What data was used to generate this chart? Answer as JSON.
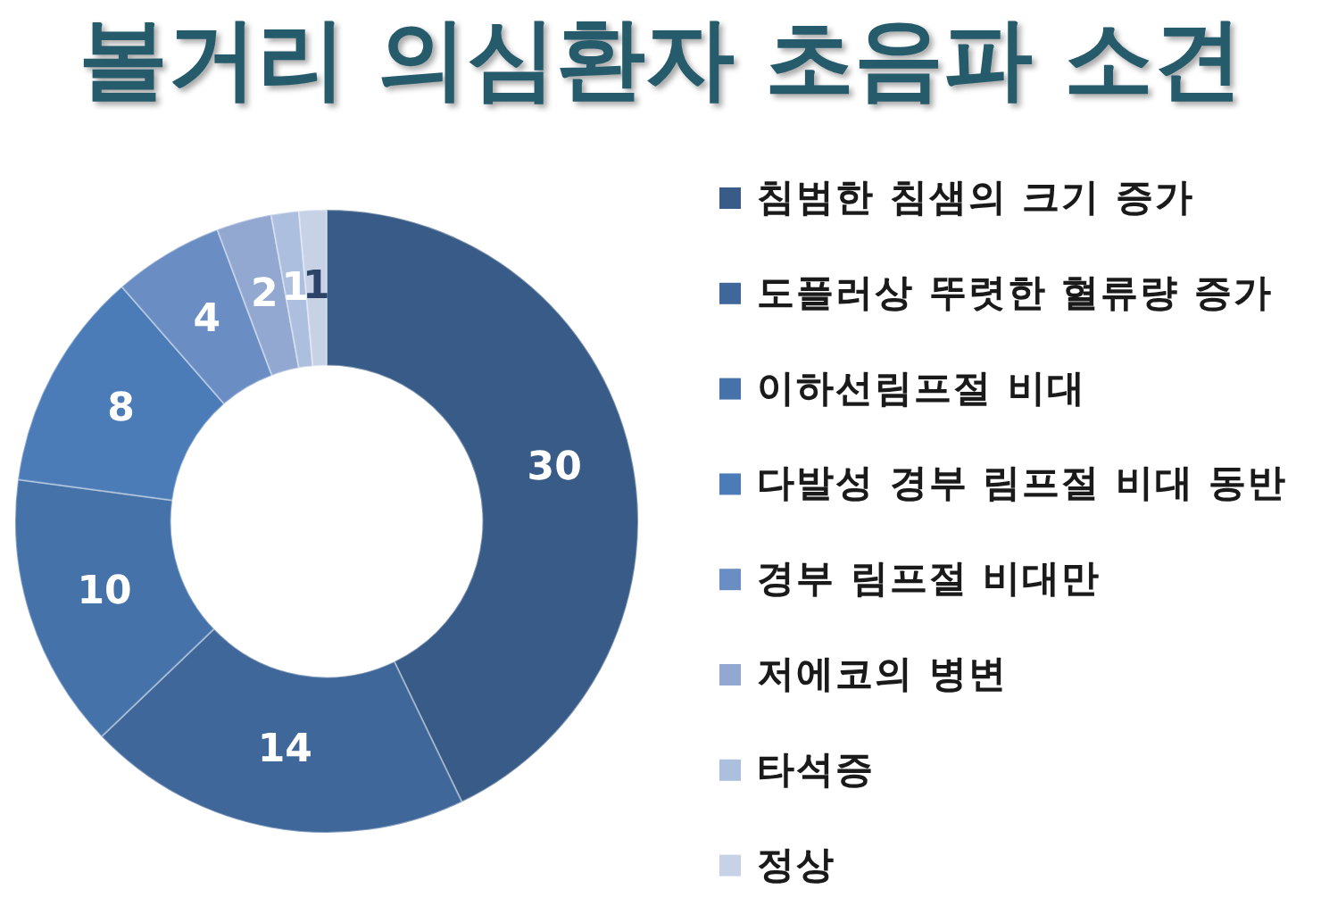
{
  "chart_data": {
    "type": "donut",
    "title": "볼거리 의심환자 초음파 소견",
    "categories": [
      "침범한 침샘의 크기 증가",
      "도플러상 뚜렷한 혈류량 증가",
      "이하선림프절 비대",
      "다발성 경부 림프절 비대 동반",
      "경부 림프절 비대만",
      "저에코의 병변",
      "타석증",
      "정상"
    ],
    "values": [
      30,
      14,
      10,
      8,
      4,
      2,
      1,
      1
    ],
    "colors": [
      "#385b87",
      "#3f6799",
      "#4573a9",
      "#4b7cb8",
      "#6a8ec3",
      "#92a8d1",
      "#adbfde",
      "#c7d2e7"
    ],
    "data_labels": true,
    "legend": "right"
  }
}
